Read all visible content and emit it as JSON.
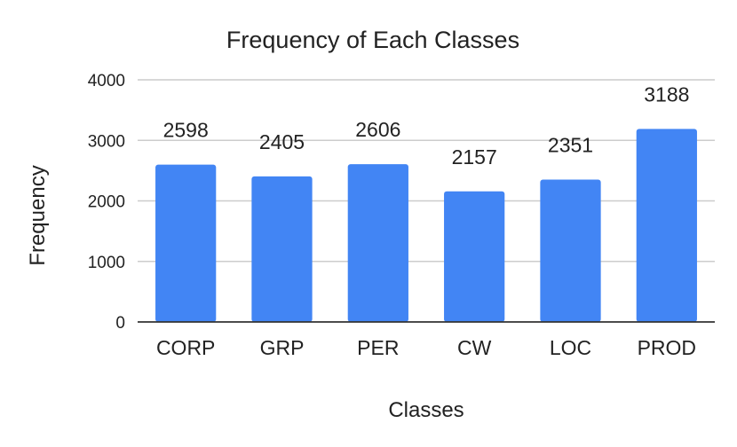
{
  "chart_data": {
    "type": "bar",
    "title": "Frequency of Each Classes",
    "xlabel": "Classes",
    "ylabel": "Frequency",
    "categories": [
      "CORP",
      "GRP",
      "PER",
      "CW",
      "LOC",
      "PROD"
    ],
    "series": [
      {
        "values": [
          2598,
          2405,
          2606,
          2157,
          2351,
          3188
        ],
        "color": "#4285f4"
      }
    ],
    "ylim": [
      0,
      4000
    ],
    "yticks": [
      0,
      1000,
      2000,
      3000,
      4000
    ],
    "ytick_labels": [
      "0",
      "1000",
      "2000",
      "3000",
      "4000"
    ],
    "data_labels": [
      "2598",
      "2405",
      "2606",
      "2157",
      "2351",
      "3188"
    ],
    "grid": true,
    "legend": "none",
    "colors": {
      "bar": "#4285f4",
      "grid": "#cccccc",
      "axis": "#333333",
      "text": "#222222"
    }
  }
}
